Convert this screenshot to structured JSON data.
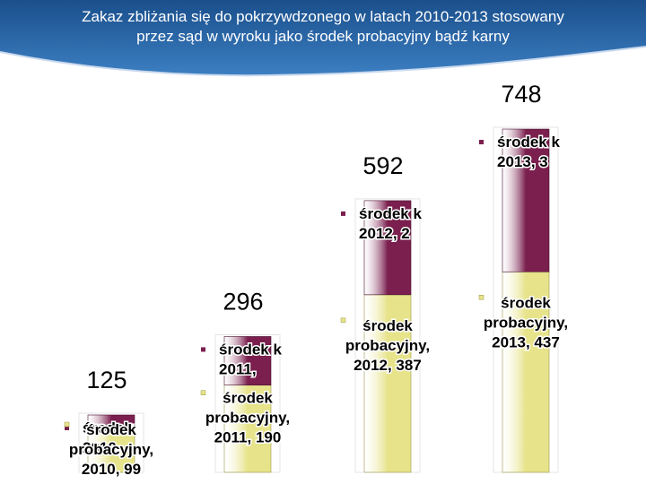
{
  "title_lines": [
    "Zakaz zbliżania się do pokrzywdzonego w latach 2010-2013 stosowany",
    "przez sąd w wyroku jako środek probacyjny bądź karny"
  ],
  "chart_data": {
    "type": "bar",
    "stacked": true,
    "categories": [
      "2010",
      "2011",
      "2012",
      "2013"
    ],
    "totals": [
      125,
      296,
      592,
      748
    ],
    "series": [
      {
        "name": "środek probacyjny",
        "values": [
          99,
          190,
          387,
          437
        ],
        "color": "#e6e38a",
        "labels": [
          [
            "środek",
            "probacyjny,",
            "2010, 99"
          ],
          [
            "środek",
            "probacyjny,",
            "2011, 190"
          ],
          [
            "środek",
            "probacyjny,",
            "2012, 387"
          ],
          [
            "środek",
            "probacyjny,",
            "2013, 437"
          ]
        ]
      },
      {
        "name": "środek karny",
        "values": [
          26,
          106,
          205,
          311
        ],
        "color": "#7a1f4e",
        "labels": [
          [
            "środek",
            "2010,"
          ],
          [
            "środek k",
            "2011,"
          ],
          [
            "środek k",
            "2012, 2"
          ],
          [
            "środek k",
            "2013, 3"
          ]
        ]
      }
    ],
    "grid": false,
    "legend": "none"
  }
}
